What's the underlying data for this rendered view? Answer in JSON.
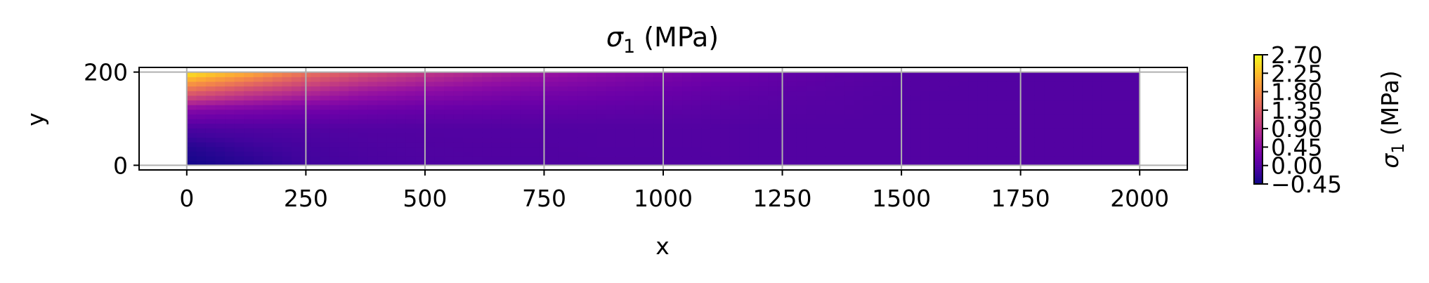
{
  "chart_data": {
    "type": "heatmap",
    "title_main": "σ",
    "title_sub": "1",
    "title_unit": " (MPa)",
    "xlabel": "x",
    "ylabel": "y",
    "xlim": [
      -100,
      2100
    ],
    "ylim": [
      -10,
      210
    ],
    "xticks": [
      0,
      250,
      500,
      750,
      1000,
      1250,
      1500,
      1750,
      2000
    ],
    "yticks": [
      0,
      200
    ],
    "grid": true,
    "colormap": "plasma",
    "domain": {
      "x": [
        0,
        2000
      ],
      "y": [
        0,
        200
      ]
    },
    "value_range": [
      -0.45,
      2.7
    ],
    "element_x_edges": [
      0,
      250,
      500,
      750,
      1000,
      1250,
      1500,
      1750,
      2000
    ],
    "field_samples": {
      "x": [
        0,
        125,
        250,
        375,
        500,
        625,
        750,
        875,
        1000,
        1125,
        1250,
        1375,
        1500,
        1750,
        2000
      ],
      "y": [
        0,
        40,
        80,
        120,
        160,
        200
      ],
      "values": [
        [
          -0.42,
          -0.3,
          -0.05,
          0.4,
          1.5,
          2.6
        ],
        [
          -0.3,
          -0.18,
          -0.02,
          0.32,
          1.12,
          2.15
        ],
        [
          -0.14,
          -0.09,
          -0.01,
          0.25,
          0.85,
          1.6
        ],
        [
          -0.06,
          -0.04,
          0.0,
          0.2,
          0.62,
          1.25
        ],
        [
          -0.03,
          -0.02,
          0.0,
          0.16,
          0.48,
          0.98
        ],
        [
          -0.02,
          -0.01,
          0.0,
          0.14,
          0.38,
          0.76
        ],
        [
          -0.02,
          -0.01,
          0.0,
          0.12,
          0.3,
          0.6
        ],
        [
          -0.01,
          0.0,
          0.0,
          0.1,
          0.24,
          0.46
        ],
        [
          -0.01,
          0.0,
          0.0,
          0.08,
          0.18,
          0.34
        ],
        [
          0.0,
          0.0,
          0.0,
          0.05,
          0.12,
          0.22
        ],
        [
          0.0,
          0.0,
          0.0,
          0.03,
          0.07,
          0.13
        ],
        [
          0.0,
          0.0,
          0.0,
          0.02,
          0.04,
          0.07
        ],
        [
          0.0,
          0.0,
          0.0,
          0.0,
          0.01,
          0.02
        ],
        [
          0.0,
          0.0,
          0.0,
          0.0,
          0.0,
          0.0
        ],
        [
          0.0,
          0.0,
          0.0,
          0.0,
          0.0,
          0.0
        ]
      ]
    },
    "colorbar": {
      "label_main": "σ",
      "label_sub": "1",
      "label_unit": " (MPa)",
      "ticks": [
        -0.45,
        0.0,
        0.45,
        0.9,
        1.35,
        1.8,
        2.25,
        2.7
      ],
      "tick_labels": [
        "−0.45",
        "0.00",
        "0.45",
        "0.90",
        "1.35",
        "1.80",
        "2.25",
        "2.70"
      ]
    },
    "colors": {
      "grid": "#b0b0b0",
      "axes": "#000000"
    }
  }
}
